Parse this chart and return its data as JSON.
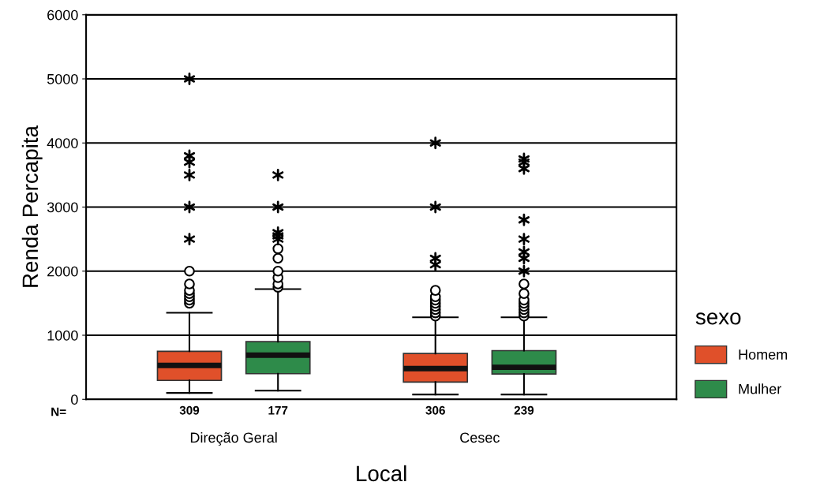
{
  "chart_data": {
    "type": "box",
    "xlabel": "Local",
    "ylabel": "Renda Percapita",
    "legend_title": "sexo",
    "legend": "right",
    "grid": "y",
    "categories": [
      "Direção Geral",
      "Cesec"
    ],
    "ylim": [
      0,
      6000
    ],
    "yticks": [
      0,
      1000,
      2000,
      3000,
      4000,
      5000,
      6000
    ],
    "series": [
      {
        "name": "Homem",
        "color": "#e0502a",
        "boxes": [
          {
            "low": 100,
            "q1": 295,
            "median": 530,
            "q3": 750,
            "high": 1350,
            "outliers": [
              1500,
              1550,
              1600,
              1650,
              1700,
              1800,
              2000,
              2500,
              3000,
              3500,
              3700,
              3800,
              5000
            ]
          },
          {
            "low": 75,
            "q1": 270,
            "median": 480,
            "q3": 715,
            "high": 1280,
            "outliers": [
              1300,
              1350,
              1400,
              1450,
              1500,
              1550,
              1600,
              1700,
              2100,
              2200,
              3000,
              4000
            ]
          }
        ]
      },
      {
        "name": "Mulher",
        "color": "#2e8b4a",
        "boxes": [
          {
            "low": 135,
            "q1": 400,
            "median": 690,
            "q3": 900,
            "high": 1720,
            "outliers": [
              1750,
              1800,
              1900,
              2000,
              2200,
              2350,
              2500,
              2550,
              2600,
              3000,
              3500
            ]
          },
          {
            "low": 75,
            "q1": 395,
            "median": 500,
            "q3": 760,
            "high": 1280,
            "outliers": [
              1300,
              1350,
              1400,
              1450,
              1500,
              1550,
              1650,
              1800,
              2000,
              2200,
              2300,
              2500,
              2800,
              3600,
              3700,
              3750
            ]
          }
        ]
      }
    ],
    "annotations": [
      "N=",
      "309",
      "177",
      "306",
      "239"
    ]
  }
}
